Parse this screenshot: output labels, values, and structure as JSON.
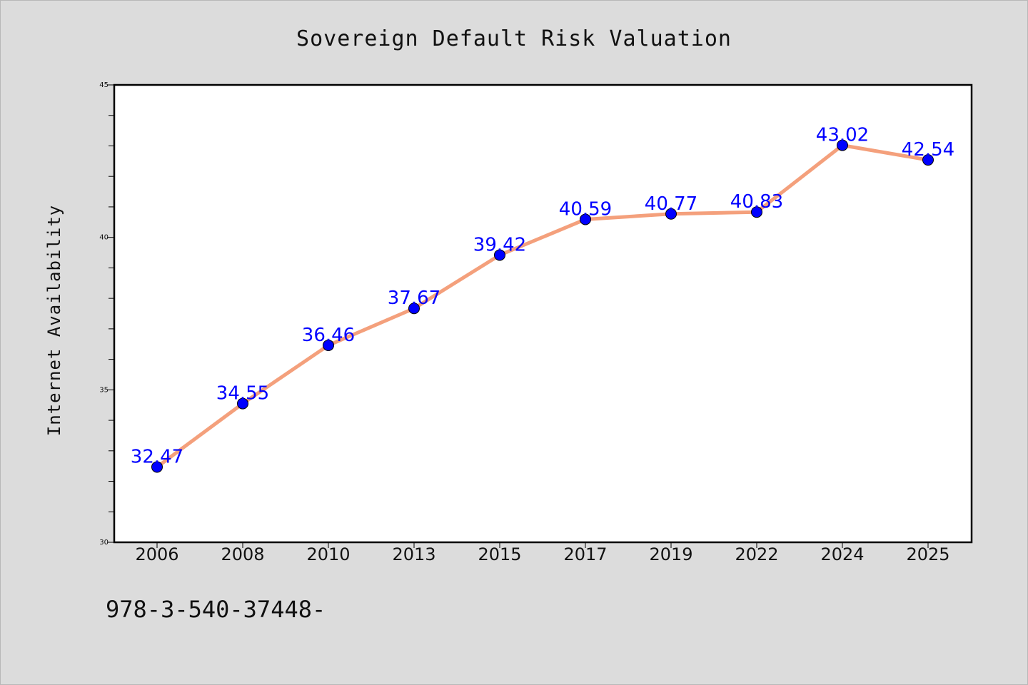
{
  "chart_data": {
    "type": "line",
    "title": "Sovereign Default Risk Valuation",
    "xlabel": "",
    "ylabel": "Internet Availability",
    "categories": [
      "2006",
      "2008",
      "2010",
      "2013",
      "2015",
      "2017",
      "2019",
      "2022",
      "2024",
      "2025"
    ],
    "values": [
      32.47,
      34.55,
      36.46,
      37.67,
      39.42,
      40.59,
      40.77,
      40.83,
      43.02,
      42.54
    ],
    "data_labels": [
      "32.47",
      "34.55",
      "36.46",
      "37.67",
      "39.42",
      "40.59",
      "40.77",
      "40.83",
      "43.02",
      "42.54"
    ],
    "ylim": [
      30,
      45
    ],
    "yticks": [
      "30",
      "35",
      "40",
      "45"
    ],
    "grid": false,
    "legend": "none",
    "line_color": "#f4a07c",
    "marker_color": "#0000ff",
    "label_color": "#0000ff"
  },
  "footer": {
    "text": "978-3-540-37448-"
  }
}
